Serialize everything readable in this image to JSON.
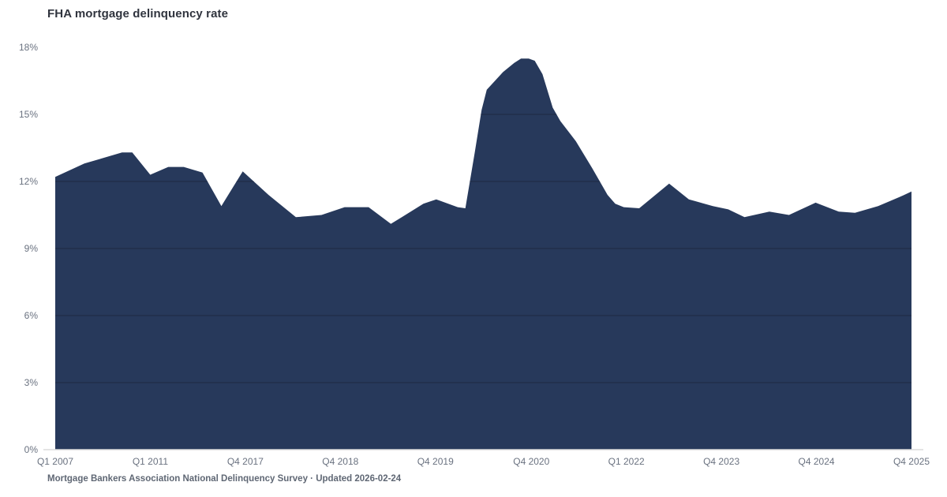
{
  "title": "FHA mortgage delinquency rate",
  "footer": "Mortgage Bankers Association National Delinquency Survey · Updated 2026-02-24",
  "chart_data": {
    "type": "area",
    "title": "FHA mortgage delinquency rate",
    "series_name": "FHA mortgage delinquency rate",
    "unit": "%",
    "xlabel": "",
    "ylabel": "",
    "ylim": [
      0,
      18
    ],
    "grid": "horizontal gridlines, visible only over the area fill",
    "legend_position": "none",
    "y_ticks": [
      {
        "value": 0,
        "label": "0%"
      },
      {
        "value": 3,
        "label": "3%"
      },
      {
        "value": 6,
        "label": "6%"
      },
      {
        "value": 9,
        "label": "9%"
      },
      {
        "value": 12,
        "label": "12%"
      },
      {
        "value": 15,
        "label": "15%"
      },
      {
        "value": 18,
        "label": "18%"
      }
    ],
    "x_ticks": [
      {
        "pos": 0.0,
        "label": "Q1 2007"
      },
      {
        "pos": 0.111,
        "label": "Q1 2011"
      },
      {
        "pos": 0.222,
        "label": "Q4 2017"
      },
      {
        "pos": 0.333,
        "label": "Q4 2018"
      },
      {
        "pos": 0.444,
        "label": "Q4 2019"
      },
      {
        "pos": 0.556,
        "label": "Q4 2020"
      },
      {
        "pos": 0.667,
        "label": "Q1 2022"
      },
      {
        "pos": 0.778,
        "label": "Q4 2023"
      },
      {
        "pos": 0.889,
        "label": "Q4 2024"
      },
      {
        "pos": 1.0,
        "label": "Q4 2025"
      }
    ],
    "points": [
      [
        0.0,
        12.2
      ],
      [
        0.034,
        12.8
      ],
      [
        0.078,
        13.3
      ],
      [
        0.09,
        13.3
      ],
      [
        0.111,
        12.3
      ],
      [
        0.132,
        12.65
      ],
      [
        0.15,
        12.65
      ],
      [
        0.172,
        12.4
      ],
      [
        0.194,
        10.9
      ],
      [
        0.219,
        12.45
      ],
      [
        0.249,
        11.4
      ],
      [
        0.281,
        10.4
      ],
      [
        0.311,
        10.5
      ],
      [
        0.338,
        10.85
      ],
      [
        0.366,
        10.85
      ],
      [
        0.392,
        10.1
      ],
      [
        0.43,
        11.0
      ],
      [
        0.445,
        11.2
      ],
      [
        0.47,
        10.85
      ],
      [
        0.479,
        10.8
      ],
      [
        0.49,
        13.3
      ],
      [
        0.498,
        15.2
      ],
      [
        0.504,
        16.1
      ],
      [
        0.523,
        16.9
      ],
      [
        0.536,
        17.3
      ],
      [
        0.544,
        17.5
      ],
      [
        0.553,
        17.5
      ],
      [
        0.56,
        17.4
      ],
      [
        0.569,
        16.8
      ],
      [
        0.581,
        15.3
      ],
      [
        0.59,
        14.7
      ],
      [
        0.602,
        14.1
      ],
      [
        0.608,
        13.8
      ],
      [
        0.627,
        12.6
      ],
      [
        0.645,
        11.4
      ],
      [
        0.654,
        11.0
      ],
      [
        0.664,
        10.85
      ],
      [
        0.682,
        10.8
      ],
      [
        0.717,
        11.9
      ],
      [
        0.74,
        11.2
      ],
      [
        0.768,
        10.9
      ],
      [
        0.786,
        10.75
      ],
      [
        0.805,
        10.4
      ],
      [
        0.834,
        10.65
      ],
      [
        0.857,
        10.5
      ],
      [
        0.888,
        11.05
      ],
      [
        0.915,
        10.65
      ],
      [
        0.934,
        10.6
      ],
      [
        0.961,
        10.9
      ],
      [
        0.986,
        11.3
      ],
      [
        1.0,
        11.55
      ]
    ],
    "colors": {
      "area_fill": "#27395B",
      "grid_over_area": "#1E2940",
      "baseline": "#DBDBDB",
      "tick_label": "#6A7280",
      "title": "#30343E",
      "footer": "#5F6774",
      "background": "#FFFFFF"
    }
  }
}
